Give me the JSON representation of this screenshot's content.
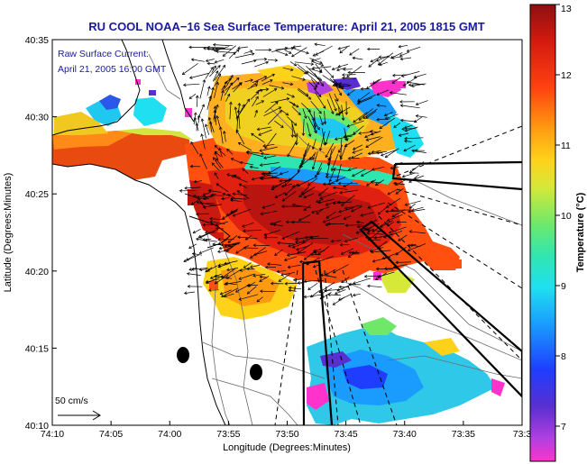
{
  "title": "RU COOL  NOAA−16  Sea Surface Temperature:  April 21, 2005 1815 GMT",
  "current_label": {
    "line1": "Raw Surface Current:",
    "line2": "April 21, 2005 16:00 GMT"
  },
  "scale_arrow_label": "50 cm/s",
  "axes": {
    "xlabel": "Longitude (Degrees:Minutes)",
    "ylabel": "Latitude (Degrees:Minutes)",
    "x_ticks": [
      "74:10",
      "74:05",
      "74:00",
      "73:55",
      "73:50",
      "73:45",
      "73:40",
      "73:35",
      "73:3"
    ],
    "y_ticks": [
      "40:35",
      "40:30",
      "40:25",
      "40:20",
      "40:15",
      "40:10"
    ]
  },
  "colorbar": {
    "label": "Temperature (°C)",
    "ticks": [
      "13",
      "12",
      "11",
      "10",
      "9",
      "8",
      "7"
    ],
    "min": 6.5,
    "max": 13
  },
  "colors": {
    "title": "#1a1a9c",
    "land": "#ffffff"
  }
}
